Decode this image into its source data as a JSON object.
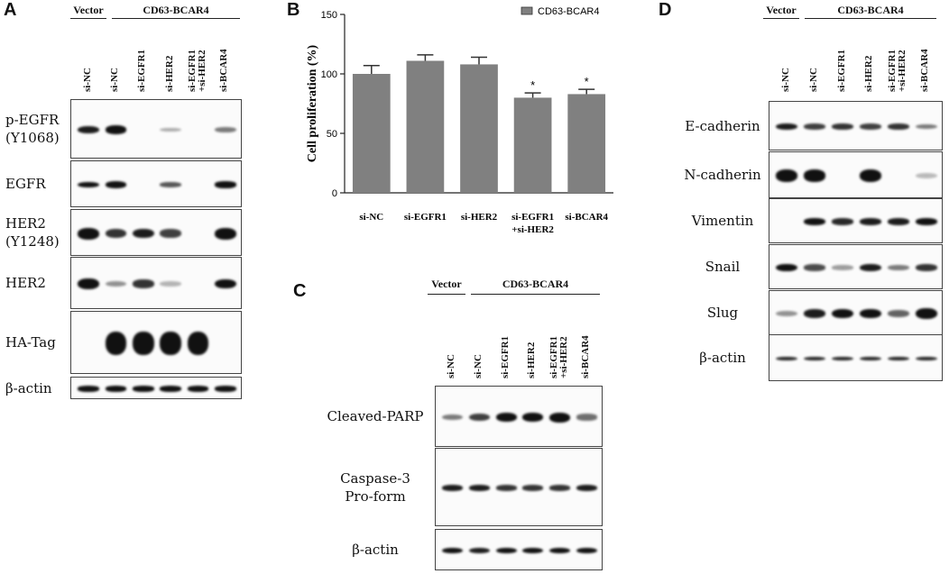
{
  "panelA": {
    "letter": "A",
    "groups": [
      {
        "text": "Vector"
      },
      {
        "text": "CD63-BCAR4"
      }
    ],
    "lanes": [
      {
        "l1": "si-NC",
        "l2": ""
      },
      {
        "l1": "si-NC",
        "l2": ""
      },
      {
        "l1": "si-EGFR1",
        "l2": ""
      },
      {
        "l1": "si-HER2",
        "l2": ""
      },
      {
        "l1": "si-EGFR1",
        "l2": "+si-HER2"
      },
      {
        "l1": "si-BCAR4",
        "l2": ""
      }
    ],
    "rows": [
      {
        "l1": "p-EGFR",
        "l2": "(Y1068)",
        "bands": [
          0.7,
          0.9,
          0,
          0.08,
          0,
          0.3
        ]
      },
      {
        "l1": "EGFR",
        "l2": "",
        "bands": [
          0.75,
          0.9,
          0,
          0.45,
          0,
          0.8
        ]
      },
      {
        "l1": "HER2",
        "l2": "(Y1248)",
        "bands": [
          1,
          0.6,
          0.7,
          0.55,
          0,
          1
        ]
      },
      {
        "l1": "HER2",
        "l2": "",
        "bands": [
          1,
          0.2,
          0.6,
          0.05,
          0,
          0.8
        ]
      },
      {
        "l1": "HA-Tag",
        "l2": "",
        "bands": [
          0,
          1,
          1,
          1,
          1,
          0
        ]
      },
      {
        "l1": "β-actin",
        "l2": "",
        "bands": [
          0.75,
          0.75,
          0.75,
          0.75,
          0.75,
          0.75
        ]
      }
    ]
  },
  "panelB": {
    "letter": "B",
    "chart_data": {
      "type": "bar",
      "title": "",
      "xlabel": "",
      "ylabel": "Cell proliferation (%)",
      "ylim": [
        0,
        150
      ],
      "yticks": [
        "0",
        "50",
        "100",
        "150"
      ],
      "grid": false,
      "legend_position": "top-right",
      "categories": [
        {
          "l1": "si-NC",
          "l2": ""
        },
        {
          "l1": "si-EGFR1",
          "l2": ""
        },
        {
          "l1": "si-HER2",
          "l2": ""
        },
        {
          "l1": "si-EGFR1",
          "l2": "+si-HER2"
        },
        {
          "l1": "si-BCAR4",
          "l2": ""
        }
      ],
      "series": [
        {
          "name": "CD63-BCAR4",
          "color": "#808080",
          "values": [
            100,
            111,
            108,
            80,
            83
          ],
          "errors": [
            7,
            5,
            6,
            4,
            4
          ],
          "annotations": [
            "",
            "",
            "",
            "*",
            "*"
          ]
        }
      ]
    }
  },
  "panelC": {
    "letter": "C",
    "groups": [
      {
        "text": "Vector"
      },
      {
        "text": "CD63-BCAR4"
      }
    ],
    "lanes": [
      {
        "l1": "si-NC",
        "l2": ""
      },
      {
        "l1": "si-NC",
        "l2": ""
      },
      {
        "l1": "si-EGFR1",
        "l2": ""
      },
      {
        "l1": "si-HER2",
        "l2": ""
      },
      {
        "l1": "si-EGFR1",
        "l2": "+si-HER2"
      },
      {
        "l1": "si-BCAR4",
        "l2": ""
      }
    ],
    "rows": [
      {
        "l1": "Cleaved-PARP",
        "l2": "",
        "bands": [
          0.3,
          0.55,
          0.85,
          0.85,
          1,
          0.35
        ]
      },
      {
        "l1": "Caspase-3",
        "l2": "Pro-form",
        "bands": [
          0.7,
          0.7,
          0.6,
          0.6,
          0.6,
          0.7
        ]
      },
      {
        "l1": "β-actin",
        "l2": "",
        "bands": [
          0.75,
          0.7,
          0.75,
          0.75,
          0.75,
          0.75
        ]
      }
    ]
  },
  "panelD": {
    "letter": "D",
    "groups": [
      {
        "text": "Vector"
      },
      {
        "text": "CD63-BCAR4"
      }
    ],
    "lanes": [
      {
        "l1": "si-NC",
        "l2": ""
      },
      {
        "l1": "si-NC",
        "l2": ""
      },
      {
        "l1": "si-EGFR1",
        "l2": ""
      },
      {
        "l1": "si-HER2",
        "l2": ""
      },
      {
        "l1": "si-EGFR1",
        "l2": "+si-HER2"
      },
      {
        "l1": "si-BCAR4",
        "l2": ""
      }
    ],
    "rows": [
      {
        "l1": "E-cadherin",
        "l2": "",
        "bands": [
          0.7,
          0.55,
          0.6,
          0.55,
          0.6,
          0.3
        ]
      },
      {
        "l1": "N-cadherin",
        "l2": "",
        "bands": [
          1,
          0.95,
          0,
          1,
          0,
          0.03
        ]
      },
      {
        "l1": "Vimentin",
        "l2": "",
        "bands": [
          0,
          0.8,
          0.65,
          0.7,
          0.7,
          0.8
        ]
      },
      {
        "l1": "Snail",
        "l2": "",
        "bands": [
          0.8,
          0.5,
          0.15,
          0.7,
          0.3,
          0.6
        ]
      },
      {
        "l1": "Slug",
        "l2": "",
        "bands": [
          0.2,
          0.7,
          0.8,
          0.75,
          0.4,
          1
        ]
      },
      {
        "l1": "β-actin",
        "l2": "",
        "bands": [
          0.65,
          0.65,
          0.65,
          0.65,
          0.65,
          0.65
        ]
      }
    ]
  }
}
